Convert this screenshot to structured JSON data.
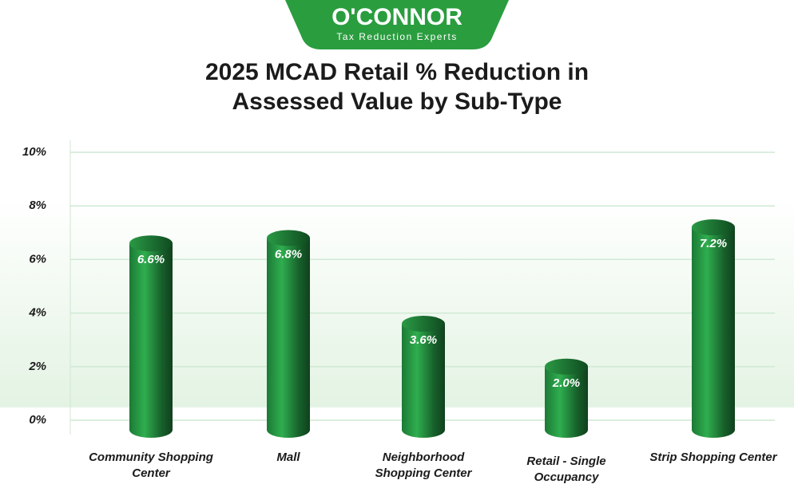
{
  "logo": {
    "name": "O'CONNOR",
    "tagline": "Tax Reduction Experts"
  },
  "chart_data": {
    "type": "bar",
    "title": "2025 MCAD Retail % Reduction in Assessed Value by Sub-Type",
    "categories": [
      "Community Shopping Center",
      "Mall",
      "Neighborhood Shopping Center",
      "Retail - Single Occupancy",
      "Strip Shopping Center"
    ],
    "values": [
      6.6,
      6.8,
      3.6,
      2.0,
      7.2
    ],
    "value_labels": [
      "6.6%",
      "6.8%",
      "3.6%",
      "2.0%",
      "7.2%"
    ],
    "color": "#1f9a3f",
    "ylim": [
      0,
      10
    ],
    "yticks": [
      {
        "value": 0,
        "label": "0%"
      },
      {
        "value": 2,
        "label": "2%"
      },
      {
        "value": 4,
        "label": "4%"
      },
      {
        "value": 6,
        "label": "6%"
      },
      {
        "value": 8,
        "label": "8%"
      },
      {
        "value": 10,
        "label": "10%"
      }
    ],
    "grid": true
  }
}
